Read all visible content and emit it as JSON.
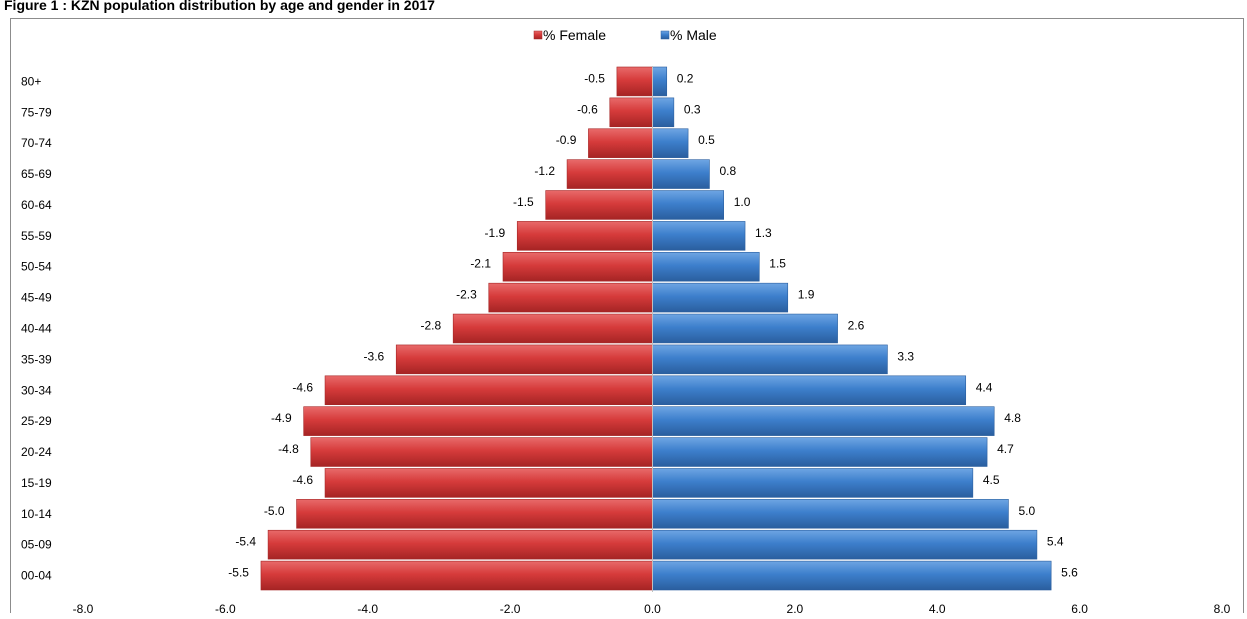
{
  "title": "Figure 1 : KZN population distribution by age and gender in 2017",
  "colors": {
    "female": "#d63b3b",
    "female_dark": "#a52424",
    "female_light": "#e86a6a",
    "male": "#3d7fcc",
    "male_dark": "#2a5e9e",
    "male_light": "#6ea5e3"
  },
  "chart_data": {
    "type": "bar",
    "orientation": "horizontal",
    "title": "Figure 1 : KZN population distribution by age and gender in 2017",
    "categories": [
      "00-04",
      "05-09",
      "10-14",
      "15-19",
      "20-24",
      "25-29",
      "30-34",
      "35-39",
      "40-44",
      "45-49",
      "50-54",
      "55-59",
      "60-64",
      "65-69",
      "70-74",
      "75-79",
      "80+"
    ],
    "series": [
      {
        "name": "% Female",
        "values": [
          -5.5,
          -5.4,
          -5.0,
          -4.6,
          -4.8,
          -4.9,
          -4.6,
          -3.6,
          -2.8,
          -2.3,
          -2.1,
          -1.9,
          -1.5,
          -1.2,
          -0.9,
          -0.6,
          -0.5
        ]
      },
      {
        "name": "% Male",
        "values": [
          5.6,
          5.4,
          5.0,
          4.5,
          4.7,
          4.8,
          4.4,
          3.3,
          2.6,
          1.9,
          1.5,
          1.3,
          1.0,
          0.8,
          0.5,
          0.3,
          0.2
        ]
      }
    ],
    "xlim": [
      -8,
      8
    ],
    "xticks": [
      -8,
      -6,
      -4,
      -2,
      0,
      2,
      4,
      6,
      8
    ],
    "tick_labels": [
      "-8.0",
      "-6.0",
      "-4.0",
      "-2.0",
      "0.0",
      "2.0",
      "4.0",
      "6.0",
      "8.0"
    ],
    "legend": "top",
    "grid": false
  }
}
